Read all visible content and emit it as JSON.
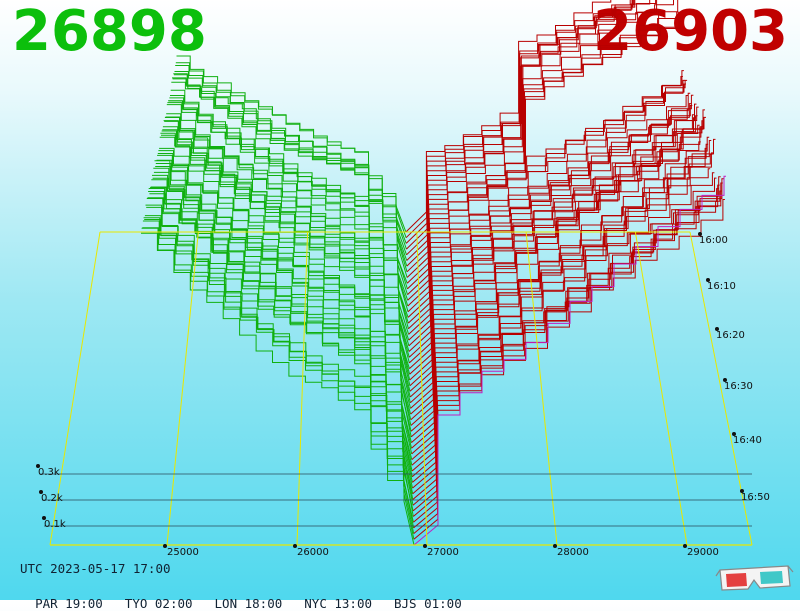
{
  "prices": {
    "bid": "26898",
    "ask": "26903",
    "bid_color": "#0cbf0c",
    "ask_color": "#c00000"
  },
  "chart_data": {
    "type": "3d-depth",
    "x_ticks": [
      "25000",
      "26000",
      "27000",
      "28000",
      "29000"
    ],
    "x_tick_values": [
      25000,
      26000,
      27000,
      28000,
      29000
    ],
    "y_ticks": [
      "0.1k",
      "0.2k",
      "0.3k"
    ],
    "y_tick_values": [
      100,
      200,
      300
    ],
    "time_ticks": [
      "16:00",
      "16:10",
      "16:20",
      "16:30",
      "16:40",
      "16:50"
    ],
    "x_range": [
      24100,
      29500
    ],
    "mid_price": 26900,
    "bid_color": "#10b010",
    "ask_color": "#b80000",
    "grid_color": "#e8e800"
  },
  "footer": {
    "utc": "UTC 2023-05-17 17:00",
    "zones": [
      "PAR 19:00",
      "TYO 02:00",
      "LON 18:00",
      "NYC 13:00",
      "BJS 01:00"
    ]
  },
  "icons": {
    "glasses": "3d-glasses-icon"
  }
}
